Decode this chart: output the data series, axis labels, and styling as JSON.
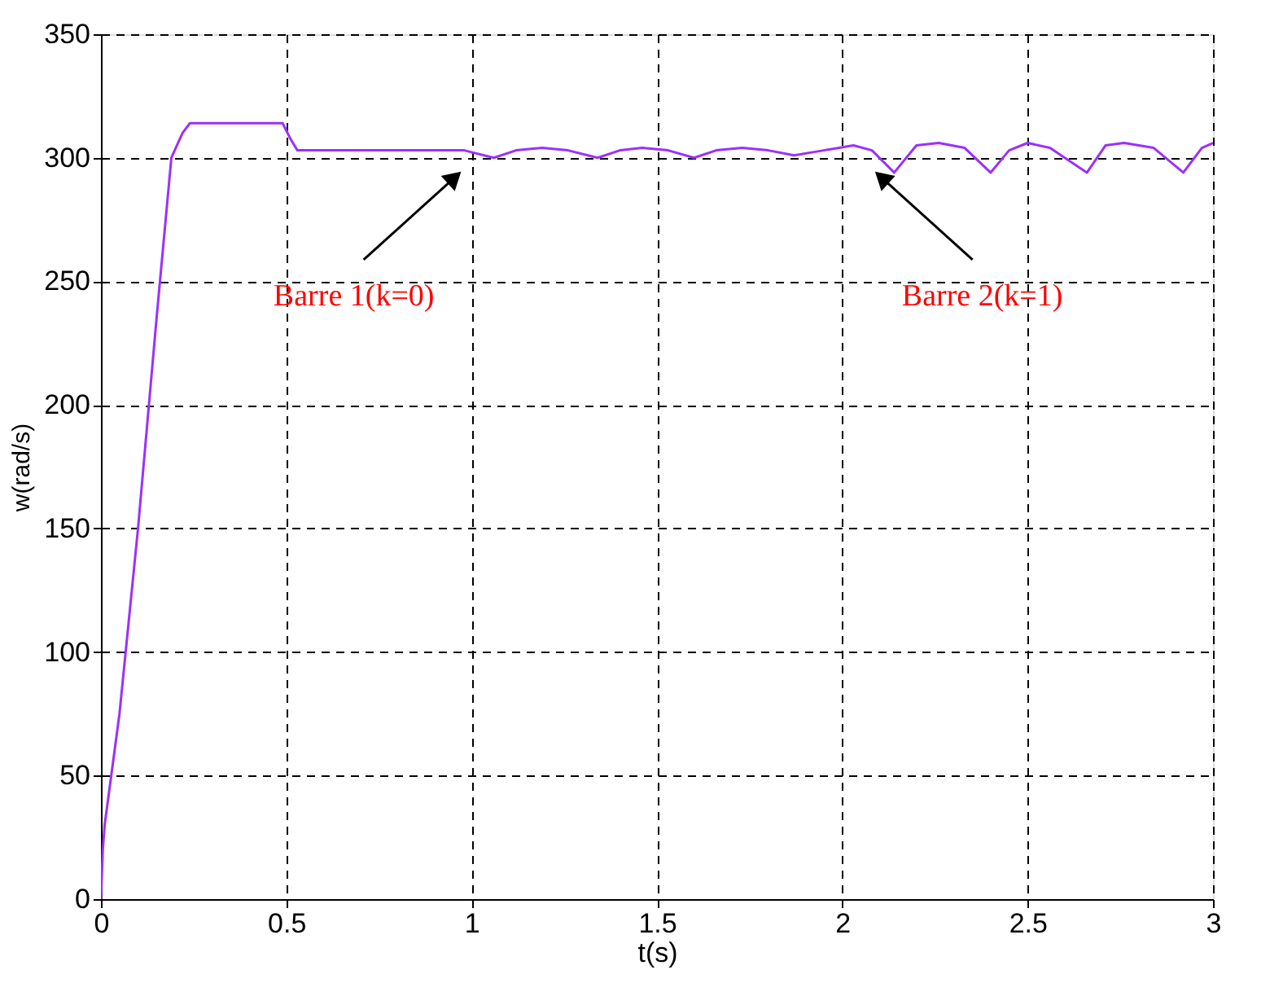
{
  "chart_data": {
    "type": "line",
    "xlabel": "t(s)",
    "ylabel": "w(rad/s)",
    "x": [
      0,
      0.005,
      0.01,
      0.05,
      0.1,
      0.15,
      0.19,
      0.22,
      0.24,
      0.26,
      0.49,
      0.51,
      0.53,
      0.7,
      0.98,
      1.06,
      1.12,
      1.19,
      1.26,
      1.34,
      1.4,
      1.46,
      1.53,
      1.6,
      1.66,
      1.73,
      1.8,
      1.87,
      1.95,
      2.03,
      2.08,
      2.14,
      2.2,
      2.26,
      2.33,
      2.4,
      2.45,
      2.5,
      2.56,
      2.66,
      2.71,
      2.76,
      2.84,
      2.92,
      2.97,
      3.0
    ],
    "series": [
      {
        "color": "#9b30ff",
        "values": [
          0,
          20,
          30,
          75,
          150,
          235,
          300,
          310,
          314,
          314,
          314,
          308,
          303,
          303,
          303,
          300,
          303,
          304,
          303,
          300,
          303,
          304,
          303,
          300,
          303,
          304,
          303,
          301,
          303,
          305,
          303,
          294,
          305,
          306,
          304,
          294,
          303,
          306,
          304,
          294,
          305,
          306,
          304,
          294,
          304,
          306
        ]
      }
    ],
    "xlim": [
      0,
      3
    ],
    "xticks": [
      0,
      0.5,
      1,
      1.5,
      2,
      2.5,
      3
    ],
    "ylim": [
      0,
      350
    ],
    "yticks": [
      0,
      50,
      100,
      150,
      200,
      250,
      300,
      350
    ],
    "grid": true,
    "annotations": [
      "Barre 1(k=0)",
      "Barre 2(k=1)"
    ]
  }
}
